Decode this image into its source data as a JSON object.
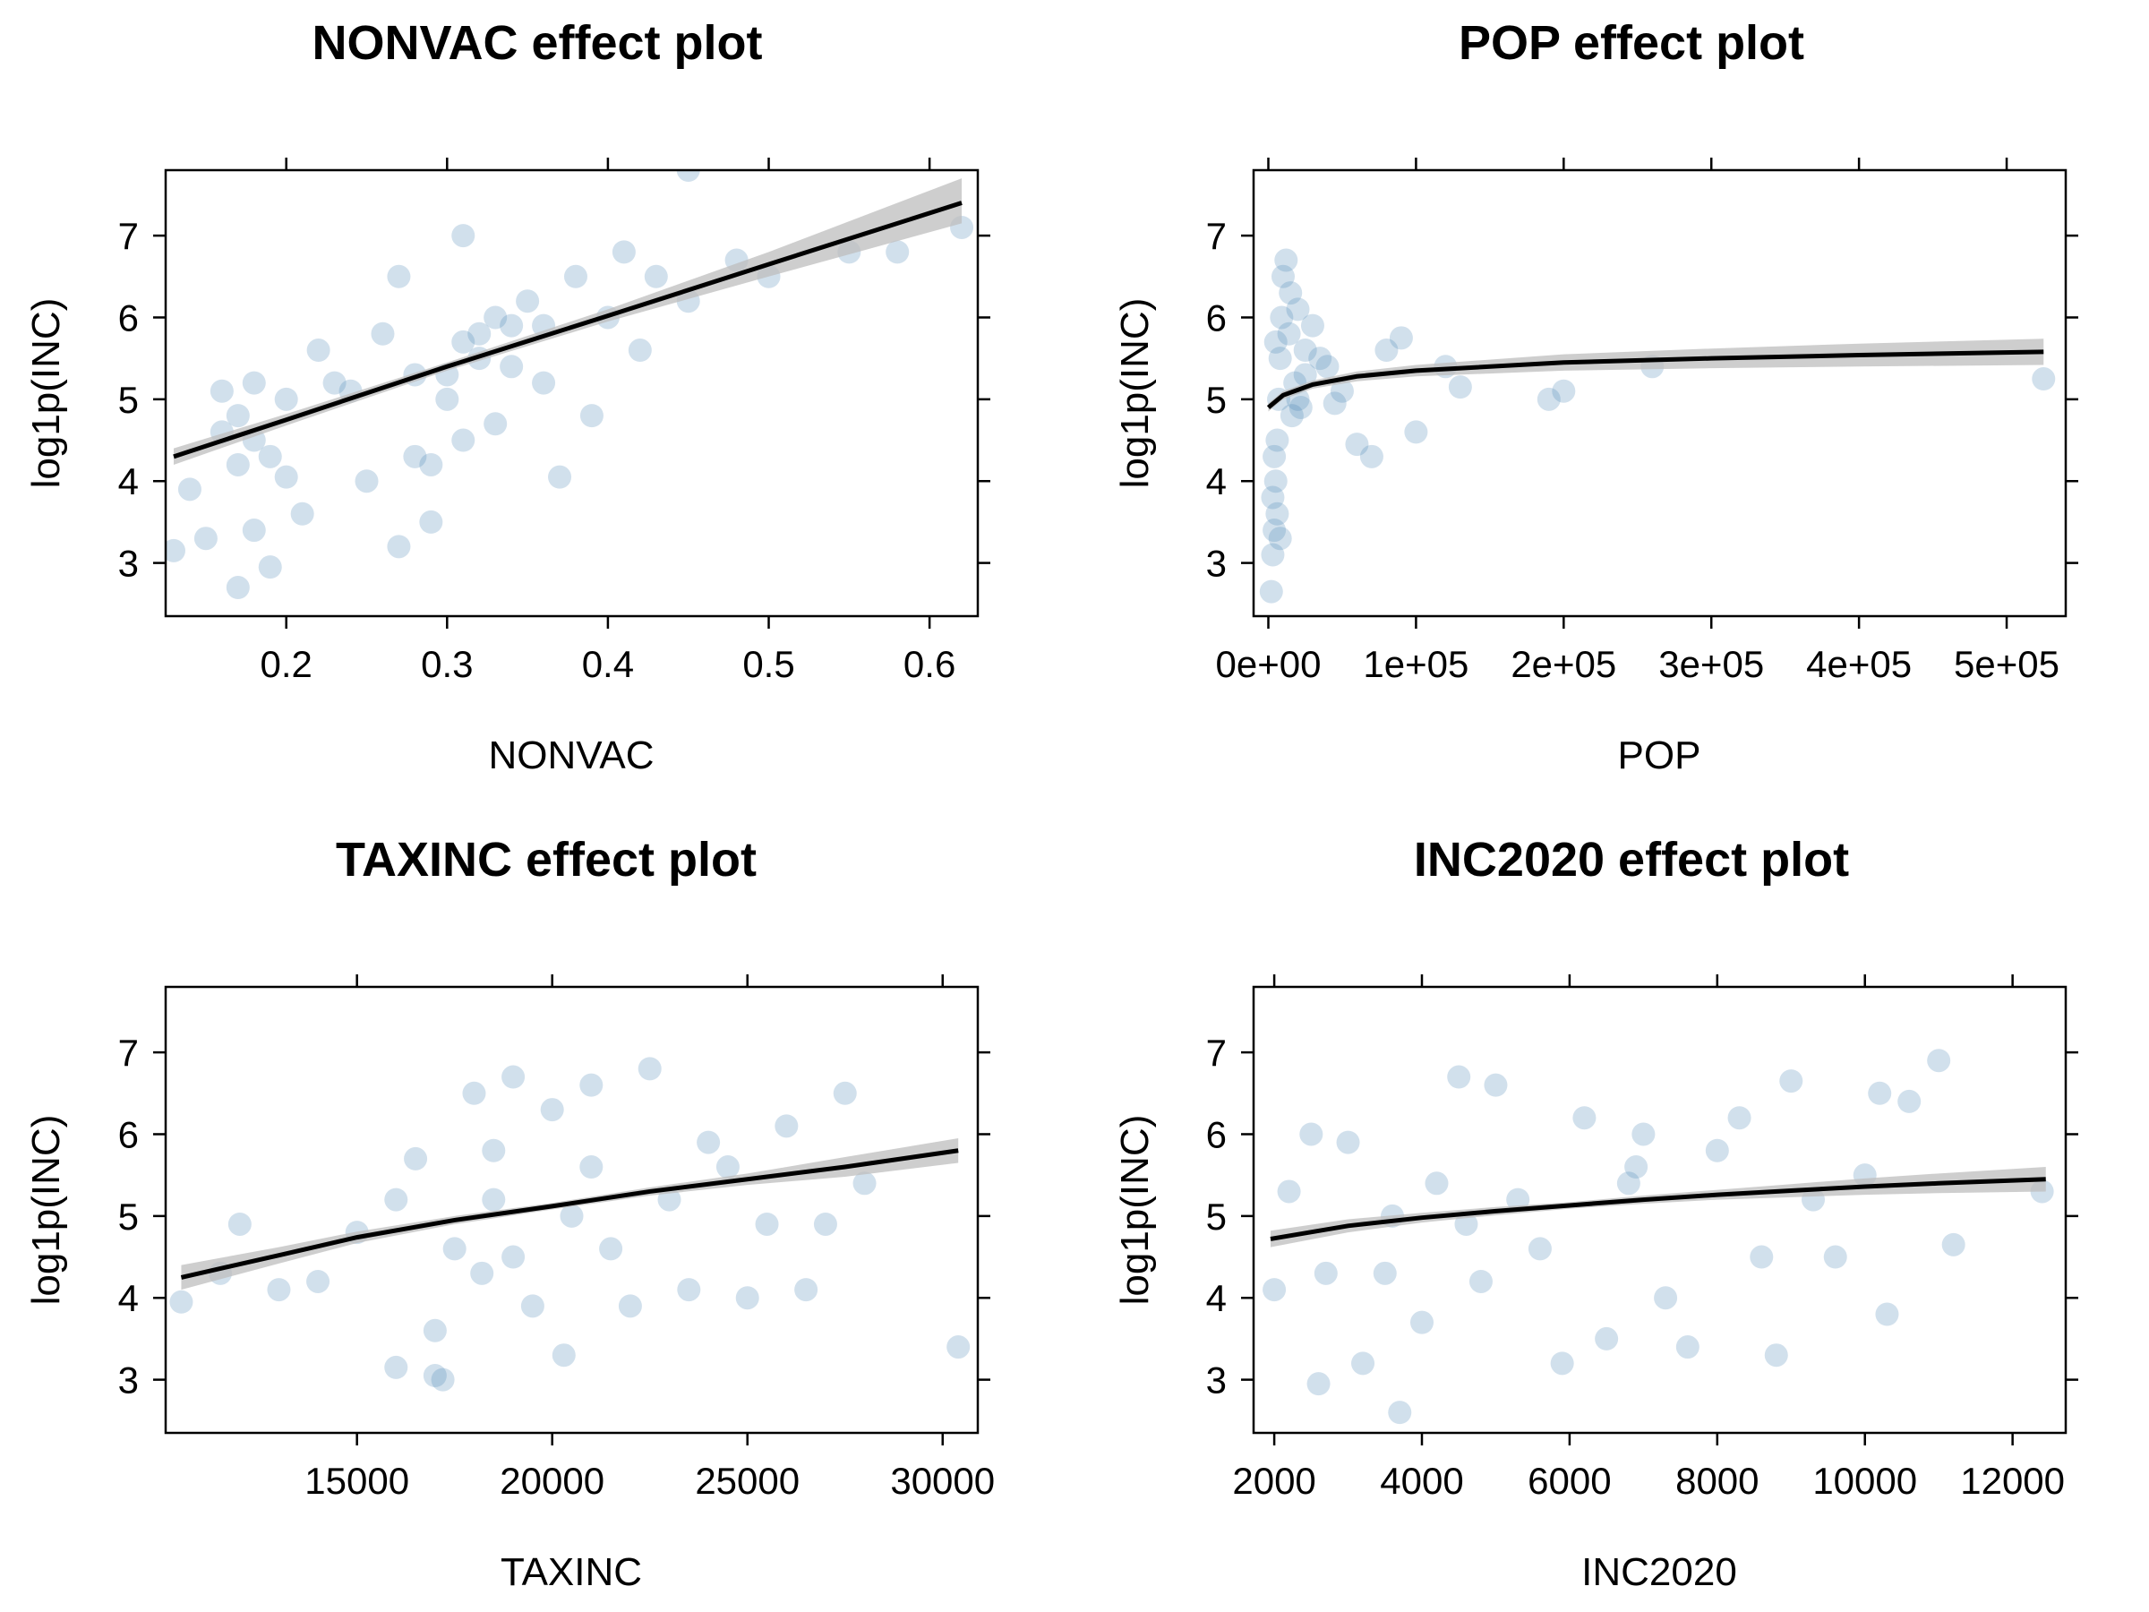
{
  "colors": {
    "points": "#4682b4",
    "fit_line": "#000000",
    "band": "#bebebe",
    "frame": "#000000"
  },
  "chart_data": [
    {
      "type": "scatter",
      "title": "NONVAC effect plot",
      "xlabel": "NONVAC",
      "ylabel": "log1p(INC)",
      "xlim": [
        0.125,
        0.63
      ],
      "ylim": [
        2.35,
        7.8
      ],
      "xticks": [
        0.2,
        0.3,
        0.4,
        0.5,
        0.6
      ],
      "xtick_labels": [
        "0.2",
        "0.3",
        "0.4",
        "0.5",
        "0.6"
      ],
      "yticks": [
        3,
        4,
        5,
        6,
        7
      ],
      "ytick_labels": [
        "3",
        "4",
        "5",
        "6",
        "7"
      ],
      "fit": {
        "x": [
          0.13,
          0.2,
          0.3,
          0.4,
          0.5,
          0.62
        ],
        "y": [
          4.3,
          4.75,
          5.4,
          6.02,
          6.65,
          7.4
        ]
      },
      "band": {
        "x": [
          0.13,
          0.2,
          0.3,
          0.4,
          0.5,
          0.62
        ],
        "lower": [
          4.2,
          4.68,
          5.35,
          5.95,
          6.5,
          7.15
        ],
        "upper": [
          4.4,
          4.82,
          5.45,
          6.1,
          6.8,
          7.7
        ]
      },
      "points": {
        "x": [
          0.13,
          0.14,
          0.15,
          0.16,
          0.17,
          0.17,
          0.18,
          0.18,
          0.19,
          0.2,
          0.21,
          0.16,
          0.17,
          0.18,
          0.19,
          0.2,
          0.22,
          0.24,
          0.26,
          0.28,
          0.3,
          0.31,
          0.32,
          0.33,
          0.34,
          0.35,
          0.36,
          0.37,
          0.38,
          0.39,
          0.4,
          0.41,
          0.42,
          0.43,
          0.45,
          0.48,
          0.5,
          0.55,
          0.58,
          0.62,
          0.27,
          0.29,
          0.3,
          0.32,
          0.33,
          0.34,
          0.28,
          0.25,
          0.23,
          0.31,
          0.45,
          0.36,
          0.31,
          0.29,
          0.27
        ],
        "y": [
          3.15,
          3.9,
          3.3,
          4.6,
          2.7,
          4.2,
          3.4,
          5.2,
          2.95,
          4.05,
          3.6,
          5.1,
          4.8,
          4.5,
          4.3,
          5.0,
          5.6,
          5.1,
          5.8,
          5.3,
          5.0,
          5.7,
          5.5,
          6.0,
          5.4,
          6.2,
          5.9,
          4.05,
          6.5,
          4.8,
          6.0,
          6.8,
          5.6,
          6.5,
          7.8,
          6.7,
          6.5,
          6.8,
          6.8,
          7.1,
          6.5,
          4.2,
          5.3,
          5.8,
          4.7,
          5.9,
          4.3,
          4.0,
          5.2,
          7.0,
          6.2,
          5.2,
          4.5,
          3.5,
          3.2
        ]
      }
    },
    {
      "type": "scatter",
      "title": "POP effect plot",
      "xlabel": "POP",
      "ylabel": "log1p(INC)",
      "xlim": [
        -10000,
        540000
      ],
      "ylim": [
        2.35,
        7.8
      ],
      "xticks": [
        0,
        100000,
        200000,
        300000,
        400000,
        500000
      ],
      "xtick_labels": [
        "0e+00",
        "1e+05",
        "2e+05",
        "3e+05",
        "4e+05",
        "5e+05"
      ],
      "yticks": [
        3,
        4,
        5,
        6,
        7
      ],
      "ytick_labels": [
        "3",
        "4",
        "5",
        "6",
        "7"
      ],
      "fit": {
        "x": [
          0,
          10000,
          30000,
          60000,
          100000,
          200000,
          300000,
          400000,
          525000
        ],
        "y": [
          4.9,
          5.05,
          5.18,
          5.28,
          5.35,
          5.45,
          5.5,
          5.54,
          5.58
        ]
      },
      "band": {
        "x": [
          0,
          10000,
          30000,
          60000,
          100000,
          200000,
          300000,
          400000,
          525000
        ],
        "lower": [
          4.85,
          5.0,
          5.13,
          5.22,
          5.28,
          5.35,
          5.38,
          5.4,
          5.42
        ],
        "upper": [
          4.95,
          5.1,
          5.23,
          5.34,
          5.42,
          5.55,
          5.62,
          5.68,
          5.74
        ]
      },
      "points": {
        "x": [
          2000,
          3000,
          4000,
          5000,
          6000,
          7000,
          8000,
          9000,
          10000,
          12000,
          14000,
          16000,
          18000,
          20000,
          22000,
          25000,
          30000,
          35000,
          40000,
          45000,
          50000,
          60000,
          70000,
          80000,
          90000,
          100000,
          120000,
          130000,
          190000,
          200000,
          260000,
          525000,
          8000,
          6000,
          5000,
          4000,
          3000,
          15000,
          20000,
          25000
        ],
        "y": [
          2.65,
          3.1,
          3.4,
          4.0,
          4.5,
          5.0,
          5.5,
          6.0,
          6.5,
          6.7,
          5.8,
          4.8,
          5.2,
          6.1,
          4.9,
          5.3,
          5.9,
          5.5,
          5.4,
          4.95,
          5.1,
          4.45,
          4.3,
          5.6,
          5.75,
          4.6,
          5.4,
          5.15,
          5.0,
          5.1,
          5.4,
          5.25,
          3.3,
          3.6,
          5.7,
          4.3,
          3.8,
          6.3,
          5.0,
          5.6
        ]
      }
    },
    {
      "type": "scatter",
      "title": "TAXINC effect plot",
      "xlabel": "TAXINC",
      "ylabel": "log1p(INC)",
      "xlim": [
        10100,
        30900
      ],
      "ylim": [
        2.35,
        7.8
      ],
      "xticks": [
        15000,
        20000,
        25000,
        30000
      ],
      "xtick_labels": [
        "15000",
        "20000",
        "25000",
        "30000"
      ],
      "yticks": [
        3,
        4,
        5,
        6,
        7
      ],
      "ytick_labels": [
        "3",
        "4",
        "5",
        "6",
        "7"
      ],
      "fit": {
        "x": [
          10500,
          13000,
          15000,
          17500,
          20000,
          22500,
          25000,
          27500,
          30400
        ],
        "y": [
          4.25,
          4.52,
          4.74,
          4.95,
          5.12,
          5.3,
          5.45,
          5.6,
          5.8
        ]
      },
      "band": {
        "x": [
          10500,
          13000,
          15000,
          17500,
          20000,
          22500,
          25000,
          27500,
          30400
        ],
        "lower": [
          4.1,
          4.42,
          4.67,
          4.9,
          5.08,
          5.25,
          5.38,
          5.48,
          5.65
        ],
        "upper": [
          4.4,
          4.62,
          4.81,
          5.0,
          5.16,
          5.35,
          5.52,
          5.72,
          5.95
        ]
      },
      "points": {
        "x": [
          10500,
          11500,
          12000,
          13000,
          14000,
          15000,
          16000,
          16500,
          17000,
          17200,
          17500,
          18000,
          18200,
          18500,
          19000,
          19500,
          20000,
          20300,
          20500,
          21000,
          21500,
          22000,
          22500,
          23000,
          23500,
          24000,
          24500,
          25000,
          25500,
          26000,
          26500,
          27000,
          27500,
          28000,
          30400,
          17000,
          19000,
          21000,
          18500,
          16000
        ],
        "y": [
          3.95,
          4.3,
          4.9,
          4.1,
          4.2,
          4.8,
          3.15,
          5.7,
          3.05,
          3.0,
          4.6,
          6.5,
          4.3,
          5.2,
          6.7,
          3.9,
          6.3,
          3.3,
          5.0,
          6.6,
          4.6,
          3.9,
          6.8,
          5.2,
          4.1,
          5.9,
          5.6,
          4.0,
          4.9,
          6.1,
          4.1,
          4.9,
          6.5,
          5.4,
          3.4,
          3.6,
          4.5,
          5.6,
          5.8,
          5.2
        ]
      }
    },
    {
      "type": "scatter",
      "title": "INC2020 effect plot",
      "xlabel": "INC2020",
      "ylabel": "log1p(INC)",
      "xlim": [
        1720,
        12720
      ],
      "ylim": [
        2.35,
        7.8
      ],
      "xticks": [
        2000,
        4000,
        6000,
        8000,
        10000,
        12000
      ],
      "xtick_labels": [
        "2000",
        "4000",
        "6000",
        "8000",
        "10000",
        "12000"
      ],
      "yticks": [
        3,
        4,
        5,
        6,
        7
      ],
      "ytick_labels": [
        "3",
        "4",
        "5",
        "6",
        "7"
      ],
      "fit": {
        "x": [
          1950,
          3000,
          4000,
          5000,
          6000,
          7000,
          8000,
          9000,
          10000,
          11000,
          12450
        ],
        "y": [
          4.72,
          4.88,
          4.98,
          5.06,
          5.13,
          5.2,
          5.26,
          5.31,
          5.36,
          5.4,
          5.45
        ]
      },
      "band": {
        "x": [
          1950,
          3000,
          4000,
          5000,
          6000,
          7000,
          8000,
          9000,
          10000,
          11000,
          12450
        ],
        "lower": [
          4.62,
          4.8,
          4.92,
          5.01,
          5.09,
          5.15,
          5.2,
          5.23,
          5.26,
          5.28,
          5.3
        ],
        "upper": [
          4.82,
          4.96,
          5.04,
          5.11,
          5.17,
          5.25,
          5.32,
          5.39,
          5.46,
          5.52,
          5.6
        ]
      },
      "points": {
        "x": [
          2000,
          2200,
          2500,
          2600,
          3000,
          3200,
          3500,
          3700,
          4000,
          4200,
          4500,
          4800,
          5000,
          5300,
          5600,
          5900,
          6200,
          6500,
          6800,
          7000,
          7300,
          7600,
          8000,
          8300,
          8600,
          8800,
          9000,
          9300,
          9600,
          10000,
          10300,
          10600,
          11000,
          11200,
          12400,
          3600,
          2700,
          4600,
          6900,
          10200
        ],
        "y": [
          4.1,
          5.3,
          6.0,
          2.95,
          5.9,
          3.2,
          4.3,
          2.6,
          3.7,
          5.4,
          6.7,
          4.2,
          6.6,
          5.2,
          4.6,
          3.2,
          6.2,
          3.5,
          5.4,
          6.0,
          4.0,
          3.4,
          5.8,
          6.2,
          4.5,
          3.3,
          6.65,
          5.2,
          4.5,
          5.5,
          3.8,
          6.4,
          6.9,
          4.65,
          5.3,
          5.0,
          4.3,
          4.9,
          5.6,
          6.5
        ]
      }
    }
  ]
}
